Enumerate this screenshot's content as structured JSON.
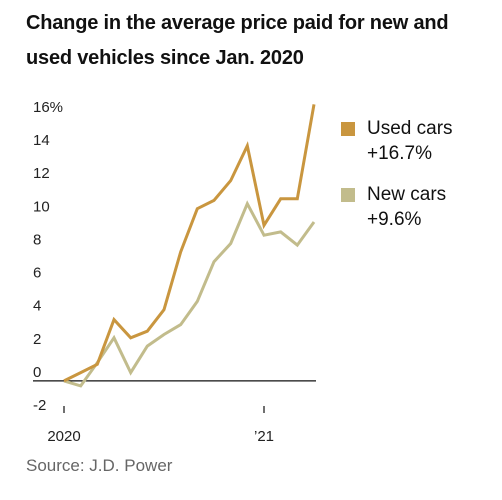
{
  "chart_data": {
    "type": "line",
    "title": "Change in the average price paid for new and used vehicles since Jan. 2020",
    "source": "Source: J.D. Power",
    "x": [
      "2020-01",
      "2020-02",
      "2020-03",
      "2020-04",
      "2020-05",
      "2020-06",
      "2020-07",
      "2020-08",
      "2020-09",
      "2020-10",
      "2020-11",
      "2020-12",
      "2021-01",
      "2021-02",
      "2021-03",
      "2021-04"
    ],
    "x_tick_labels": [
      "2020",
      "’21"
    ],
    "y_tick_labels": [
      "-2",
      "0",
      "2",
      "4",
      "6",
      "8",
      "10",
      "12",
      "14",
      "16%"
    ],
    "ylim": [
      -2,
      16
    ],
    "grid": false,
    "legend_position": "right",
    "series": [
      {
        "name": "Used cars",
        "change_label": "+16.7%",
        "color": "#c9963f",
        "values": [
          0,
          0.5,
          1,
          3.7,
          2.6,
          3,
          4.3,
          7.8,
          10.4,
          10.9,
          12.1,
          14.2,
          9.4,
          11,
          11,
          16.7
        ]
      },
      {
        "name": "New cars",
        "change_label": "+9.6%",
        "color": "#c2bc8c",
        "values": [
          0,
          -0.3,
          1.1,
          2.6,
          0.5,
          2.1,
          2.8,
          3.4,
          4.8,
          7.2,
          8.3,
          10.7,
          8.8,
          9,
          8.2,
          9.6
        ]
      }
    ]
  }
}
